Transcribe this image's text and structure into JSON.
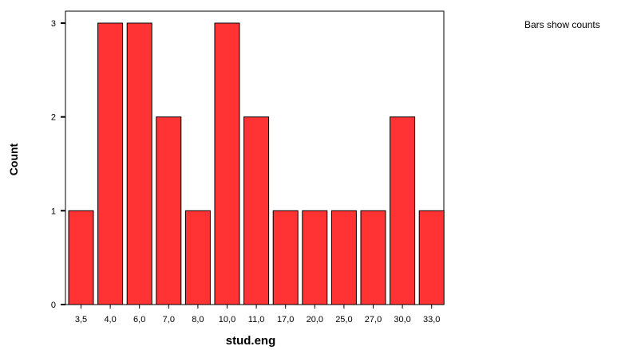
{
  "chart_data": {
    "type": "bar",
    "categories": [
      "3,5",
      "4,0",
      "6,0",
      "7,0",
      "8,0",
      "10,0",
      "11,0",
      "17,0",
      "20,0",
      "25,0",
      "27,0",
      "30,0",
      "33,0"
    ],
    "values": [
      1,
      3,
      3,
      2,
      1,
      3,
      2,
      1,
      1,
      1,
      1,
      2,
      1
    ],
    "xlabel": "stud.eng",
    "ylabel": "Count",
    "ylim": [
      0,
      3
    ],
    "yticks": [
      "0",
      "1",
      "2",
      "3"
    ],
    "note": "Bars show counts",
    "grid": false,
    "colors": {
      "bar": "#ff3333",
      "outline": "#000000",
      "background": "#ffffff"
    }
  }
}
